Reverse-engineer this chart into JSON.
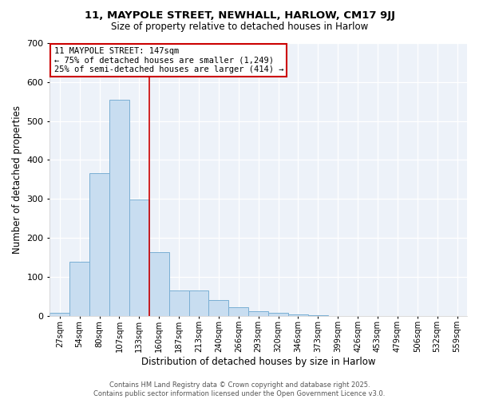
{
  "title1": "11, MAYPOLE STREET, NEWHALL, HARLOW, CM17 9JJ",
  "title2": "Size of property relative to detached houses in Harlow",
  "xlabel": "Distribution of detached houses by size in Harlow",
  "ylabel": "Number of detached properties",
  "bar_color": "#c8ddf0",
  "bar_edge_color": "#7aafd4",
  "plot_bg_color": "#edf2f9",
  "fig_bg_color": "#ffffff",
  "grid_color": "#ffffff",
  "categories": [
    "27sqm",
    "54sqm",
    "80sqm",
    "107sqm",
    "133sqm",
    "160sqm",
    "187sqm",
    "213sqm",
    "240sqm",
    "266sqm",
    "293sqm",
    "320sqm",
    "346sqm",
    "373sqm",
    "399sqm",
    "426sqm",
    "453sqm",
    "479sqm",
    "506sqm",
    "532sqm",
    "559sqm"
  ],
  "values": [
    8,
    138,
    365,
    555,
    298,
    162,
    65,
    65,
    40,
    22,
    12,
    7,
    3,
    1,
    0,
    0,
    0,
    0,
    0,
    0,
    0
  ],
  "ylim": [
    0,
    700
  ],
  "yticks": [
    0,
    100,
    200,
    300,
    400,
    500,
    600,
    700
  ],
  "vline_x_index": 4,
  "vline_color": "#cc0000",
  "annotation_title": "11 MAYPOLE STREET: 147sqm",
  "annotation_line1": "← 75% of detached houses are smaller (1,249)",
  "annotation_line2": "25% of semi-detached houses are larger (414) →",
  "annotation_box_facecolor": "#ffffff",
  "annotation_box_edgecolor": "#cc0000",
  "footer1": "Contains HM Land Registry data © Crown copyright and database right 2025.",
  "footer2": "Contains public sector information licensed under the Open Government Licence v3.0."
}
